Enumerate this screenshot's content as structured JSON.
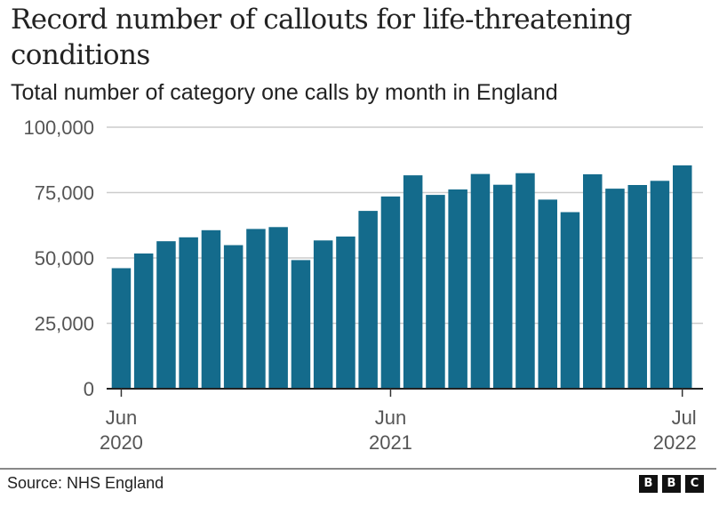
{
  "chart_data": {
    "type": "bar",
    "title": "Record number of callouts for life-threatening conditions",
    "subtitle": "Total number of category one calls by month in England",
    "xlabel": "",
    "ylabel": "",
    "ylim": [
      0,
      100000
    ],
    "y_ticks": [
      0,
      25000,
      50000,
      75000,
      100000
    ],
    "y_tick_labels": [
      "0",
      "25,000",
      "50,000",
      "75,000",
      "100,000"
    ],
    "grid": true,
    "bar_color": "#146b8c",
    "categories": [
      "Jun 2020",
      "Jul 2020",
      "Aug 2020",
      "Sep 2020",
      "Oct 2020",
      "Nov 2020",
      "Dec 2020",
      "Jan 2021",
      "Feb 2021",
      "Mar 2021",
      "Apr 2021",
      "May 2021",
      "Jun 2021",
      "Jul 2021",
      "Aug 2021",
      "Sep 2021",
      "Oct 2021",
      "Nov 2021",
      "Dec 2021",
      "Jan 2022",
      "Feb 2022",
      "Mar 2022",
      "Apr 2022",
      "May 2022",
      "Jun 2022",
      "Jul 2022"
    ],
    "values": [
      46100,
      51700,
      56400,
      57900,
      60600,
      54900,
      61100,
      61800,
      49200,
      56700,
      58200,
      68000,
      73500,
      81600,
      74100,
      76200,
      82100,
      78000,
      82400,
      72300,
      67500,
      82000,
      76500,
      77900,
      79500,
      85400
    ],
    "x_tick_labels": [
      {
        "index": 0,
        "line1": "Jun",
        "line2": "2020"
      },
      {
        "index": 12,
        "line1": "Jun",
        "line2": "2021"
      },
      {
        "index": 25,
        "line1": "Jul",
        "line2": "2022"
      }
    ]
  },
  "footer": {
    "source": "Source: NHS England",
    "logo_letters": [
      "B",
      "B",
      "C"
    ]
  }
}
